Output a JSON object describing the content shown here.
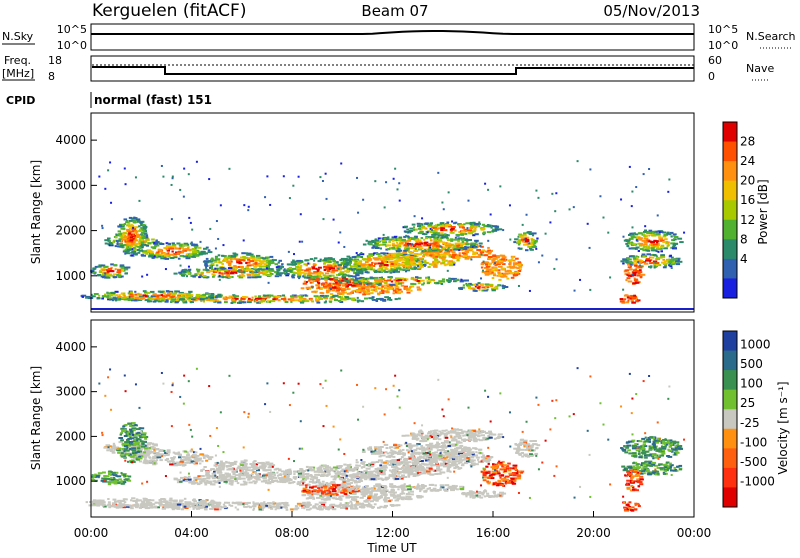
{
  "header": {
    "station": "Kerguelen (fitACF)",
    "beam": "Beam 07",
    "date": "05/Nov/2013"
  },
  "top_panels": {
    "nsky": {
      "label": "N.Sky",
      "right_label": "N.Search",
      "left_ticks": [
        "10^5",
        "10^0"
      ],
      "right_ticks": [
        "10^5",
        "10^0"
      ]
    },
    "freq": {
      "label_line1": "Freq.",
      "label_line2": "[MHz]",
      "right_label": "Nave",
      "left_ticks": [
        "18",
        "8"
      ],
      "right_ticks": [
        "60",
        "0"
      ]
    },
    "cpid": {
      "label": "CPID",
      "value": "normal (fast) 151"
    }
  },
  "chart_data": [
    {
      "type": "heatmap",
      "title": "",
      "ylabel": "Slant Range [km]",
      "yticks": [
        "4000",
        "3000",
        "2000",
        "1000"
      ],
      "ylim": [
        200,
        4600
      ],
      "colorbar": {
        "label": "Power [dB]",
        "ticks": [
          "28",
          "24",
          "20",
          "16",
          "12",
          "8",
          "4"
        ],
        "colors": [
          "#e00000",
          "#ff5000",
          "#ff9010",
          "#f0c000",
          "#a8c800",
          "#50b030",
          "#2a8a6a",
          "#3060b0",
          "#1a20e0"
        ]
      }
    },
    {
      "type": "heatmap",
      "title": "",
      "ylabel": "Slant Range [km]",
      "yticks": [
        "4000",
        "3000",
        "2000",
        "1000"
      ],
      "ylim": [
        200,
        4600
      ],
      "colorbar": {
        "label": "Velocity  [m s⁻¹]",
        "ticks": [
          "1000",
          "500",
          "100",
          "25",
          "-25",
          "-100",
          "-500",
          "-1000"
        ],
        "colors": [
          "#2040a0",
          "#2a6a8a",
          "#3a9050",
          "#70c030",
          "#c8c8c0",
          "#ff9010",
          "#ff6010",
          "#ff3010",
          "#e00000"
        ]
      }
    }
  ],
  "x_axis": {
    "ticks": [
      "00:00",
      "04:00",
      "08:00",
      "12:00",
      "16:00",
      "20:00",
      "00:00"
    ],
    "label": "Time UT"
  }
}
